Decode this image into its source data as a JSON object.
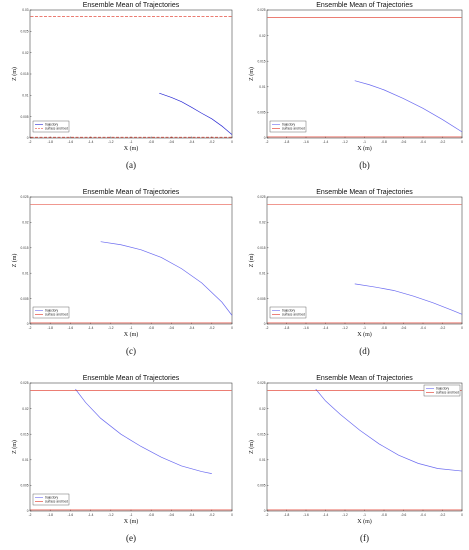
{
  "chart_data": [
    {
      "panel": "(a)",
      "type": "line",
      "title": "Ensemble Mean of Trajectories",
      "xlabel": "X (m)",
      "ylabel": "Z (m)",
      "xlim": [
        -2,
        0
      ],
      "ylim": [
        0,
        0.03
      ],
      "x_ticks": [
        "-2",
        "-1.8",
        "-1.6",
        "-1.4",
        "-1.2",
        "-1",
        "-0.8",
        "-0.6",
        "-0.4",
        "-0.2",
        "0"
      ],
      "y_ticks": [
        "0",
        "0.005",
        "0.01",
        "0.015",
        "0.02",
        "0.025",
        "0.03"
      ],
      "legend": {
        "position": "bottom-left",
        "entries": [
          "trajectory",
          "surface and bed"
        ]
      },
      "series": [
        {
          "name": "trajectory",
          "color": "#2b2bd4",
          "style": "solid",
          "x": [
            -0.72,
            -0.6,
            -0.5,
            -0.4,
            -0.3,
            -0.2,
            -0.1,
            0.0
          ],
          "y": [
            0.0105,
            0.0095,
            0.0085,
            0.0072,
            0.0058,
            0.0045,
            0.0028,
            0.0008
          ]
        },
        {
          "name": "surface and bed",
          "color": "#e03020",
          "style": "dashed",
          "y_levels": [
            0.0285,
            0.0002
          ]
        }
      ]
    },
    {
      "panel": "(b)",
      "type": "line",
      "title": "Ensemble Mean of Trajectories",
      "xlabel": "X (m)",
      "ylabel": "Z (m)",
      "xlim": [
        -2,
        0
      ],
      "ylim": [
        0,
        0.025
      ],
      "x_ticks": [
        "-2",
        "-1.8",
        "-1.6",
        "-1.4",
        "-1.2",
        "-1",
        "-0.8",
        "-0.6",
        "-0.4",
        "-0.2",
        "0"
      ],
      "y_ticks": [
        "0",
        "0.005",
        "0.01",
        "0.015",
        "0.02",
        "0.025"
      ],
      "legend": {
        "position": "bottom-left",
        "entries": [
          "trajectory",
          "surface and bed"
        ]
      },
      "series": [
        {
          "name": "trajectory",
          "color": "#6b6bf0",
          "style": "solid",
          "x": [
            -1.1,
            -0.95,
            -0.8,
            -0.6,
            -0.4,
            -0.2,
            0.0
          ],
          "y": [
            0.0112,
            0.0104,
            0.0094,
            0.0077,
            0.0058,
            0.0036,
            0.0012
          ]
        },
        {
          "name": "surface and bed",
          "color": "#e03020",
          "style": "solid",
          "y_levels": [
            0.0235,
            0.0002
          ]
        }
      ]
    },
    {
      "panel": "(c)",
      "type": "line",
      "title": "Ensemble Mean of Trajectories",
      "xlabel": "X (m)",
      "ylabel": "Z (m)",
      "xlim": [
        -2,
        0
      ],
      "ylim": [
        0,
        0.025
      ],
      "x_ticks": [
        "-2",
        "-1.8",
        "-1.6",
        "-1.4",
        "-1.2",
        "-1",
        "-0.8",
        "-0.6",
        "-0.4",
        "-0.2",
        "0"
      ],
      "y_ticks": [
        "0",
        "0.005",
        "0.01",
        "0.015",
        "0.02",
        "0.025"
      ],
      "legend": {
        "position": "bottom-left",
        "entries": [
          "trajectory",
          "surface and bed"
        ]
      },
      "series": [
        {
          "name": "trajectory",
          "color": "#6b6bf0",
          "style": "solid",
          "x": [
            -1.3,
            -1.1,
            -0.9,
            -0.7,
            -0.5,
            -0.3,
            -0.1,
            0.0
          ],
          "y": [
            0.0162,
            0.0156,
            0.0146,
            0.0131,
            0.0109,
            0.0081,
            0.0043,
            0.0017
          ]
        },
        {
          "name": "surface and bed",
          "color": "#e03020",
          "style": "solid",
          "y_levels": [
            0.0235,
            0.0002
          ]
        }
      ]
    },
    {
      "panel": "(d)",
      "type": "line",
      "title": "Ensemble Mean of Trajectories",
      "xlabel": "X (m)",
      "ylabel": "Z (m)",
      "xlim": [
        -2,
        0
      ],
      "ylim": [
        0,
        0.025
      ],
      "x_ticks": [
        "-2",
        "-1.8",
        "-1.6",
        "-1.4",
        "-1.2",
        "-1",
        "-0.8",
        "-0.6",
        "-0.4",
        "-0.2",
        "0"
      ],
      "y_ticks": [
        "0",
        "0.005",
        "0.01",
        "0.015",
        "0.02",
        "0.025"
      ],
      "legend": {
        "position": "bottom-left",
        "entries": [
          "trajectory",
          "surface and bed"
        ]
      },
      "series": [
        {
          "name": "trajectory",
          "color": "#6b6bf0",
          "style": "solid",
          "x": [
            -1.1,
            -0.9,
            -0.7,
            -0.5,
            -0.3,
            -0.1,
            0.0
          ],
          "y": [
            0.0079,
            0.0073,
            0.0066,
            0.0055,
            0.0042,
            0.0027,
            0.0019
          ]
        },
        {
          "name": "surface and bed",
          "color": "#e03020",
          "style": "solid",
          "y_levels": [
            0.0235,
            0.0002
          ]
        }
      ]
    },
    {
      "panel": "(e)",
      "type": "line",
      "title": "Ensemble Mean of Trajectories",
      "xlabel": "X (m)",
      "ylabel": "Z (m)",
      "xlim": [
        -2,
        0
      ],
      "ylim": [
        0,
        0.025
      ],
      "x_ticks": [
        "-2",
        "-1.8",
        "-1.6",
        "-1.4",
        "-1.2",
        "-1",
        "-0.8",
        "-0.6",
        "-0.4",
        "-0.2",
        "0"
      ],
      "y_ticks": [
        "0",
        "0.005",
        "0.01",
        "0.015",
        "0.02",
        "0.025"
      ],
      "legend": {
        "position": "bottom-left",
        "entries": [
          "trajectory",
          "surface and bed"
        ]
      },
      "series": [
        {
          "name": "trajectory",
          "color": "#6b6bf0",
          "style": "solid",
          "x": [
            -1.55,
            -1.45,
            -1.3,
            -1.1,
            -0.9,
            -0.7,
            -0.5,
            -0.3,
            -0.2
          ],
          "y": [
            0.0238,
            0.0212,
            0.0181,
            0.015,
            0.0126,
            0.0105,
            0.0088,
            0.0077,
            0.0073
          ]
        },
        {
          "name": "surface and bed",
          "color": "#e03020",
          "style": "solid",
          "y_levels": [
            0.0235,
            0.0002
          ]
        }
      ]
    },
    {
      "panel": "(f)",
      "type": "line",
      "title": "Ensemble Mean of Trajectories",
      "xlabel": "X (m)",
      "ylabel": "Z (m)",
      "xlim": [
        -2,
        0
      ],
      "ylim": [
        0,
        0.025
      ],
      "x_ticks": [
        "-2",
        "-1.8",
        "-1.6",
        "-1.4",
        "-1.2",
        "-1",
        "-0.8",
        "-0.6",
        "-0.4",
        "-0.2",
        "0"
      ],
      "y_ticks": [
        "0",
        "0.005",
        "0.01",
        "0.015",
        "0.02",
        "0.025"
      ],
      "legend": {
        "position": "top-right",
        "entries": [
          "trajectory",
          "surface and bed"
        ]
      },
      "series": [
        {
          "name": "trajectory",
          "color": "#6b6bf0",
          "style": "solid",
          "x": [
            -1.5,
            -1.4,
            -1.25,
            -1.05,
            -0.85,
            -0.65,
            -0.45,
            -0.25,
            0.0
          ],
          "y": [
            0.0238,
            0.0215,
            0.0189,
            0.0158,
            0.0131,
            0.0109,
            0.0093,
            0.0083,
            0.0078
          ]
        },
        {
          "name": "surface and bed",
          "color": "#e03020",
          "style": "solid",
          "y_levels": [
            0.0235,
            0.0002
          ]
        }
      ]
    }
  ]
}
